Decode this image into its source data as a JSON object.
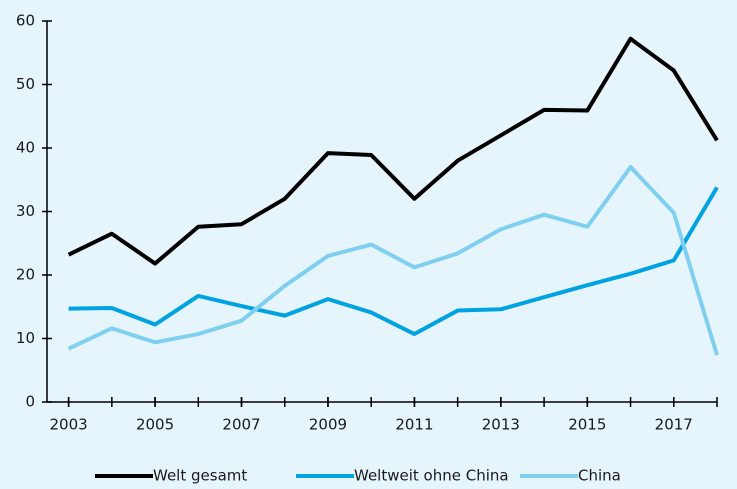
{
  "chart_data": {
    "type": "line",
    "x": [
      2003,
      2004,
      2005,
      2006,
      2007,
      2008,
      2009,
      2010,
      2011,
      2012,
      2013,
      2014,
      2015,
      2016,
      2017,
      2018
    ],
    "xlim": [
      2002.5,
      2018
    ],
    "xticks": [
      2003,
      2005,
      2007,
      2009,
      2011,
      2013,
      2015,
      2017
    ],
    "ylim": [
      0,
      60
    ],
    "yticks": [
      0,
      10,
      20,
      30,
      40,
      50,
      60
    ],
    "grid": false,
    "legend": "bottom",
    "series": [
      {
        "name": "Welt gesamt",
        "color": "#000000",
        "values": [
          23.2,
          26.5,
          21.8,
          27.6,
          28.0,
          32.0,
          39.2,
          38.9,
          32.0,
          38.0,
          42.0,
          46.0,
          45.9,
          57.2,
          52.2,
          41.2
        ]
      },
      {
        "name": "Weltweit ohne China",
        "color": "#00a3e0",
        "values": [
          14.7,
          14.8,
          12.2,
          16.7,
          15.1,
          13.6,
          16.2,
          14.1,
          10.7,
          14.4,
          14.6,
          16.5,
          18.4,
          20.2,
          22.3,
          33.8
        ]
      },
      {
        "name": "China",
        "color": "#7fd0f0",
        "values": [
          8.4,
          11.6,
          9.4,
          10.7,
          12.8,
          18.3,
          23.0,
          24.8,
          21.2,
          23.4,
          27.2,
          29.5,
          27.6,
          37.0,
          29.8,
          7.4
        ]
      }
    ]
  }
}
